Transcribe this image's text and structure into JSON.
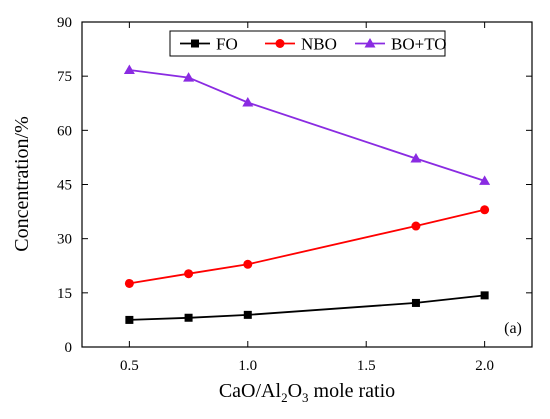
{
  "chart_data": {
    "type": "line",
    "xlabel_parts": [
      "CaO/Al",
      "2",
      "O",
      "3",
      " mole ratio"
    ],
    "ylabel": "Concentration/%",
    "panel_label": "(a)",
    "xlim": [
      0.3,
      2.2
    ],
    "ylim": [
      0,
      90
    ],
    "x_ticks": [
      0.5,
      1.0,
      1.5,
      2.0
    ],
    "x_tick_labels": [
      "0.5",
      "1.0",
      "1.5",
      "2.0"
    ],
    "y_ticks": [
      0,
      15,
      30,
      45,
      60,
      75,
      90
    ],
    "y_tick_labels": [
      "0",
      "15",
      "30",
      "45",
      "60",
      "75",
      "90"
    ],
    "x": [
      0.5,
      0.75,
      1.0,
      1.71,
      2.0
    ],
    "series": [
      {
        "name": "FO",
        "values": [
          7.5,
          8.1,
          8.9,
          12.2,
          14.3
        ],
        "color": "#000000",
        "marker": "square"
      },
      {
        "name": "NBO",
        "values": [
          17.6,
          20.3,
          22.9,
          33.5,
          38.0
        ],
        "color": "#ff0000",
        "marker": "circle"
      },
      {
        "name": "BO+TO",
        "values": [
          76.7,
          74.6,
          67.7,
          52.2,
          46.0
        ],
        "color": "#8a2be2",
        "marker": "triangle"
      }
    ],
    "legend_position": "top-center",
    "grid": false
  }
}
